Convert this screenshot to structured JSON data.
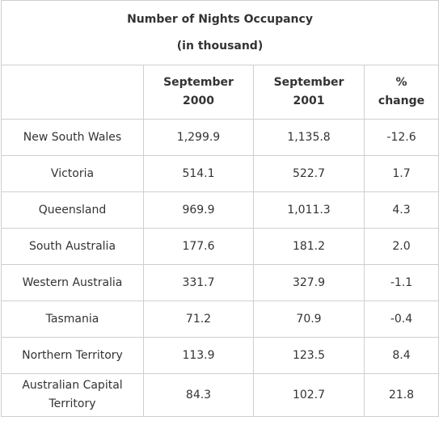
{
  "chart_data": {
    "type": "table",
    "title": "Number of Nights Occupancy",
    "subtitle": "(in thousand)",
    "columns": [
      "",
      "September 2000",
      "September 2001",
      "% change"
    ],
    "column_lines": [
      [
        "",
        ""
      ],
      [
        "September",
        "2000"
      ],
      [
        "September",
        "2001"
      ],
      [
        "%",
        "change"
      ]
    ],
    "rows": [
      {
        "region": "New South Wales",
        "region_lines": [
          "New South Wales"
        ],
        "sep2000": "1,299.9",
        "sep2001": "1,135.8",
        "change": "-12.6"
      },
      {
        "region": "Victoria",
        "region_lines": [
          "Victoria"
        ],
        "sep2000": "514.1",
        "sep2001": "522.7",
        "change": "1.7"
      },
      {
        "region": "Queensland",
        "region_lines": [
          "Queensland"
        ],
        "sep2000": "969.9",
        "sep2001": "1,011.3",
        "change": "4.3"
      },
      {
        "region": "South Australia",
        "region_lines": [
          "South Australia"
        ],
        "sep2000": "177.6",
        "sep2001": "181.2",
        "change": "2.0"
      },
      {
        "region": "Western Australia",
        "region_lines": [
          "Western Australia"
        ],
        "sep2000": "331.7",
        "sep2001": "327.9",
        "change": "-1.1"
      },
      {
        "region": "Tasmania",
        "region_lines": [
          "Tasmania"
        ],
        "sep2000": "71.2",
        "sep2001": "70.9",
        "change": "-0.4"
      },
      {
        "region": "Northern Territory",
        "region_lines": [
          "Northern Territory"
        ],
        "sep2000": "113.9",
        "sep2001": "123.5",
        "change": "8.4"
      },
      {
        "region": "Australian Capital Territory",
        "region_lines": [
          "Australian Capital",
          "Territory"
        ],
        "sep2000": "84.3",
        "sep2001": "102.7",
        "change": "21.8"
      }
    ]
  },
  "colors": {
    "border": "#cfcfcf",
    "text": "#333333",
    "background": "#ffffff"
  }
}
